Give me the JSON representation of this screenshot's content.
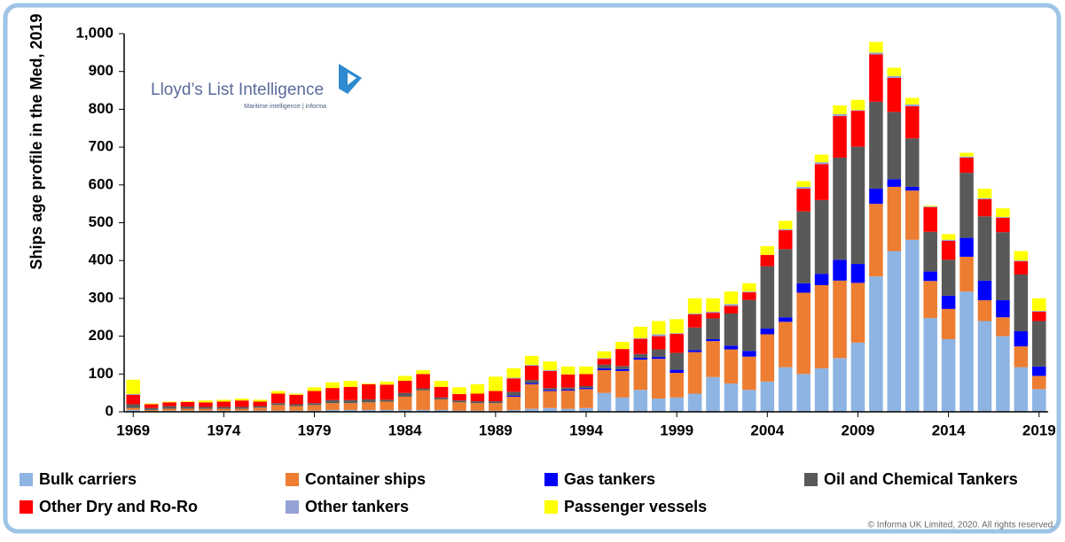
{
  "chart_data": {
    "type": "stacked_bar",
    "y_label": "Ships age profile in the Med, 2019",
    "logo_title": "Lloyd’s List Intelligence",
    "logo_subtitle": "Maritime intelligence | informa",
    "copyright": "© Informa UK Limited, 2020. All rights reserved.",
    "categories": [
      "1969",
      null,
      null,
      null,
      null,
      "1974",
      null,
      null,
      null,
      null,
      "1979",
      null,
      null,
      null,
      null,
      "1984",
      null,
      null,
      null,
      null,
      "1989",
      null,
      null,
      null,
      null,
      "1994",
      null,
      null,
      null,
      null,
      "1999",
      null,
      null,
      null,
      null,
      "2004",
      null,
      null,
      null,
      null,
      "2009",
      null,
      null,
      null,
      null,
      "2014",
      null,
      null,
      null,
      null,
      "2019"
    ],
    "ylim": [
      0,
      1000
    ],
    "yticks": [
      0,
      100,
      200,
      300,
      400,
      500,
      600,
      700,
      800,
      900,
      {
        "value": 1000,
        "label": "1,000"
      }
    ],
    "grid": false,
    "legend": "bottom",
    "series": [
      {
        "name": "Bulk carriers",
        "color": "#8db4e2",
        "values": [
          5,
          2,
          3,
          3,
          3,
          3,
          3,
          3,
          3,
          3,
          3,
          5,
          5,
          5,
          5,
          5,
          5,
          5,
          3,
          3,
          3,
          5,
          8,
          10,
          8,
          10,
          50,
          38,
          58,
          35,
          38,
          48,
          92,
          75,
          58,
          80,
          118,
          100,
          115,
          142,
          183,
          358,
          425,
          455,
          248,
          192,
          318,
          240,
          200,
          118,
          60
        ]
      },
      {
        "name": "Container ships",
        "color": "#ed7d31",
        "values": [
          5,
          3,
          5,
          5,
          5,
          5,
          5,
          8,
          15,
          12,
          15,
          18,
          18,
          20,
          22,
          35,
          52,
          28,
          22,
          20,
          20,
          35,
          65,
          45,
          48,
          50,
          60,
          70,
          80,
          105,
          65,
          110,
          95,
          90,
          88,
          125,
          120,
          215,
          220,
          205,
          158,
          192,
          170,
          130,
          98,
          80,
          92,
          55,
          50,
          55,
          35
        ]
      },
      {
        "name": "Gas tankers",
        "color": "#0000ff",
        "values": [
          0,
          0,
          0,
          0,
          0,
          0,
          0,
          0,
          0,
          0,
          0,
          0,
          0,
          0,
          0,
          0,
          0,
          0,
          0,
          0,
          0,
          3,
          3,
          3,
          3,
          3,
          5,
          5,
          5,
          5,
          8,
          5,
          5,
          10,
          15,
          15,
          12,
          25,
          30,
          55,
          50,
          40,
          20,
          10,
          25,
          35,
          50,
          52,
          45,
          40,
          25
        ]
      },
      {
        "name": "Oil and Chemical Tankers",
        "color": "#595959",
        "values": [
          10,
          5,
          7,
          6,
          5,
          5,
          5,
          4,
          5,
          5,
          5,
          8,
          8,
          8,
          5,
          10,
          5,
          5,
          5,
          5,
          5,
          10,
          8,
          5,
          5,
          5,
          10,
          8,
          10,
          20,
          45,
          60,
          55,
          85,
          135,
          165,
          180,
          190,
          195,
          270,
          310,
          230,
          178,
          128,
          105,
          95,
          172,
          170,
          180,
          150,
          120
        ]
      },
      {
        "name": "Other Dry and Ro-Ro",
        "color": "#ff0000",
        "values": [
          25,
          10,
          10,
          12,
          12,
          14,
          17,
          12,
          25,
          25,
          32,
          32,
          35,
          40,
          40,
          32,
          38,
          28,
          17,
          20,
          27,
          35,
          38,
          45,
          35,
          32,
          15,
          45,
          40,
          35,
          50,
          35,
          15,
          20,
          20,
          30,
          50,
          60,
          95,
          110,
          95,
          125,
          90,
          85,
          65,
          50,
          40,
          45,
          38,
          35,
          25
        ]
      },
      {
        "name": "Other tankers",
        "color": "#95a3d4",
        "values": [
          2,
          0,
          0,
          0,
          0,
          0,
          0,
          0,
          0,
          0,
          0,
          0,
          0,
          0,
          0,
          0,
          0,
          0,
          0,
          0,
          0,
          2,
          2,
          2,
          0,
          0,
          2,
          0,
          2,
          5,
          2,
          2,
          3,
          5,
          2,
          0,
          3,
          5,
          5,
          5,
          2,
          5,
          5,
          5,
          2,
          3,
          3,
          3,
          2,
          2,
          2
        ]
      },
      {
        "name": "Passenger vessels",
        "color": "#ffff00",
        "values": [
          38,
          2,
          2,
          2,
          5,
          5,
          5,
          5,
          7,
          3,
          10,
          15,
          16,
          2,
          8,
          13,
          10,
          16,
          18,
          25,
          38,
          25,
          24,
          23,
          21,
          20,
          18,
          19,
          30,
          35,
          37,
          40,
          35,
          33,
          22,
          23,
          22,
          15,
          20,
          23,
          27,
          28,
          22,
          17,
          2,
          15,
          10,
          25,
          23,
          25,
          33
        ]
      }
    ]
  }
}
